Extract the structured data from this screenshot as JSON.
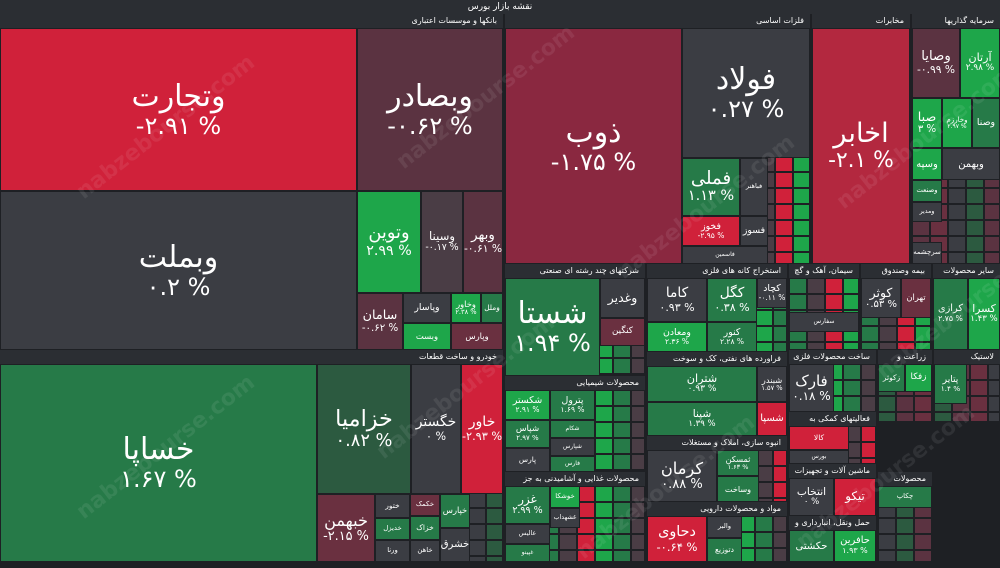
{
  "title": "نقشه بازار بورس",
  "watermark": "nabzebourse.com",
  "sectors": [
    {
      "name": "بانکها و موسسات اعتباری",
      "tiles": [
        {
          "name": "وتجارت",
          "change": "-۲.۹۱ %"
        },
        {
          "name": "وبصادر",
          "change": "-۰.۶۲ %"
        },
        {
          "name": "وبملت",
          "change": "۰.۲ %"
        },
        {
          "name": "وتوین",
          "change": "۲.۹۹ %"
        },
        {
          "name": "وسینا",
          "change": "-۰.۱۷ %"
        },
        {
          "name": "وبهر",
          "change": "-۰.۶۱ %"
        },
        {
          "name": "سامان",
          "change": "-۰.۶۲ %"
        },
        {
          "name": "وپاسار"
        },
        {
          "name": "وبست"
        },
        {
          "name": "وخاور",
          "change": "۲.۳۸ %"
        },
        {
          "name": "وملل"
        },
        {
          "name": "وپارس"
        }
      ]
    },
    {
      "name": "خودرو و ساخت قطعات",
      "tiles": [
        {
          "name": "خساپا",
          "change": "۱.۶۷ %"
        },
        {
          "name": "خزامیا",
          "change": "۰.۸۲ %"
        },
        {
          "name": "خگستر",
          "change": "۰ %"
        },
        {
          "name": "خاور",
          "change": "-۲.۹۳ %"
        },
        {
          "name": "خبهمن",
          "change": "-۲.۱۵ %"
        },
        {
          "name": "ختور"
        },
        {
          "name": "خدیزل"
        },
        {
          "name": "ورنا"
        },
        {
          "name": "خکمک"
        },
        {
          "name": "خزاک"
        },
        {
          "name": "خاهن"
        },
        {
          "name": "خپارس"
        },
        {
          "name": "خشرق"
        }
      ]
    },
    {
      "name": "فلزات اساسی",
      "tiles": [
        {
          "name": "ذوب",
          "change": "-۱.۷۵ %"
        },
        {
          "name": "فولاد",
          "change": "۰.۲۷ %"
        },
        {
          "name": "فملی",
          "change": "۱.۱۳ %"
        },
        {
          "name": "فباهنر"
        },
        {
          "name": "فخوز",
          "change": "-۲.۹۵ %"
        },
        {
          "name": "فسوز"
        },
        {
          "name": "فاسمین"
        }
      ]
    },
    {
      "name": "مخابرات",
      "tiles": [
        {
          "name": "اخابر",
          "change": "-۲.۱ %"
        }
      ]
    },
    {
      "name": "سرمایه گذاریها",
      "tiles": [
        {
          "name": "وصایا",
          "change": "-۰.۹۹ %"
        },
        {
          "name": "آرتان",
          "change": "۲.۹۸ %"
        },
        {
          "name": "صبا",
          "change": "۳ %"
        },
        {
          "name": "وخارزم",
          "change": "۲.۹۷ %"
        },
        {
          "name": "وصنا"
        },
        {
          "name": "وسپه"
        },
        {
          "name": "وبهمن"
        },
        {
          "name": "وصنعت"
        },
        {
          "name": "ومدیر"
        },
        {
          "name": "سرچشمه"
        }
      ]
    },
    {
      "name": "شرکتهای چند رشته ای صنعتی",
      "tiles": [
        {
          "name": "شستا",
          "change": "۱.۹۴ %"
        },
        {
          "name": "وغدیر"
        },
        {
          "name": "کنگین"
        }
      ]
    },
    {
      "name": "استخراج کانه های فلزی",
      "tiles": [
        {
          "name": "کاما",
          "change": "۰.۹۳ %"
        },
        {
          "name": "کگل",
          "change": "۰.۳۸ %"
        },
        {
          "name": "کچاد",
          "change": "-۰.۱۱ %"
        },
        {
          "name": "ومعادن",
          "change": "۲.۳۶ %"
        },
        {
          "name": "کنور",
          "change": "۲.۲۸ %"
        }
      ]
    },
    {
      "name": "سیمان، آهک و گچ",
      "tiles": [
        {
          "name": "سفارس"
        }
      ]
    },
    {
      "name": "بیمه وصندوق",
      "tiles": [
        {
          "name": "کوثر",
          "change": "۰.۵۳ %"
        },
        {
          "name": "تهران"
        }
      ]
    },
    {
      "name": "سایر محصولات",
      "tiles": [
        {
          "name": "کرازی",
          "change": "۲.۷۵ %"
        },
        {
          "name": "کسرا",
          "change": "۱.۴۳ %"
        }
      ]
    },
    {
      "name": "محصولات شیمیایی",
      "tiles": [
        {
          "name": "شکستر",
          "change": "۲.۹۱ %"
        },
        {
          "name": "پترول",
          "change": "۱.۶۹ %"
        },
        {
          "name": "شپاس",
          "change": "۲.۹۷ %"
        },
        {
          "name": "شکام"
        },
        {
          "name": "شپارس"
        },
        {
          "name": "پارس"
        },
        {
          "name": "فارس"
        }
      ]
    },
    {
      "name": "فراورده های نفتی، کک و سوخت",
      "tiles": [
        {
          "name": "شتران",
          "change": "۰.۹۳ %"
        },
        {
          "name": "شپنا",
          "change": "۱.۳۹ %"
        },
        {
          "name": "شبندر",
          "change": "۱.۵۷ %"
        },
        {
          "name": "شسپا"
        }
      ]
    },
    {
      "name": "انبوه سازی، املاک و مستغلات",
      "tiles": [
        {
          "name": "کرمان",
          "change": "۰.۸۸ %"
        },
        {
          "name": "ثمسکن",
          "change": "۱.۶۳ %"
        },
        {
          "name": "وساخت"
        }
      ]
    },
    {
      "name": "محصولات غذایی و آشامیدنی به جز",
      "tiles": [
        {
          "name": "غزر",
          "change": "۲.۹۹ %"
        },
        {
          "name": "خوشکا"
        },
        {
          "name": "غشهداب"
        },
        {
          "name": "عالیس"
        },
        {
          "name": "غپینو"
        }
      ]
    },
    {
      "name": "مواد و محصولات دارویی",
      "tiles": [
        {
          "name": "دحاوی",
          "change": "-۰.۶۴ %"
        },
        {
          "name": "والبر"
        },
        {
          "name": "دتوزیع"
        }
      ]
    },
    {
      "name": "ساخت محصولات فلزی",
      "tiles": [
        {
          "name": "فارک",
          "change": "۰.۱۸ %"
        }
      ]
    },
    {
      "name": "فعالیتهای کمکی به",
      "tiles": [
        {
          "name": "کالا"
        },
        {
          "name": "بورس"
        }
      ]
    },
    {
      "name": "ماشین آلات و تجهیزات",
      "tiles": [
        {
          "name": "انتخاب",
          "change": "۰ %"
        },
        {
          "name": "تیکو"
        }
      ]
    },
    {
      "name": "حمل ونقل، انبارداری و",
      "tiles": [
        {
          "name": "حکشتی"
        },
        {
          "name": "حافرین",
          "change": "۱.۹۳ %"
        }
      ]
    },
    {
      "name": "زراعت و",
      "tiles": [
        {
          "name": "زکوثر"
        },
        {
          "name": "زفکا"
        }
      ]
    },
    {
      "name": "لاستیک",
      "tiles": [
        {
          "name": "پتایر",
          "change": "۱.۴ %"
        }
      ]
    },
    {
      "name": "محصولات",
      "tiles": [
        {
          "name": "چکاپ"
        }
      ]
    }
  ]
}
